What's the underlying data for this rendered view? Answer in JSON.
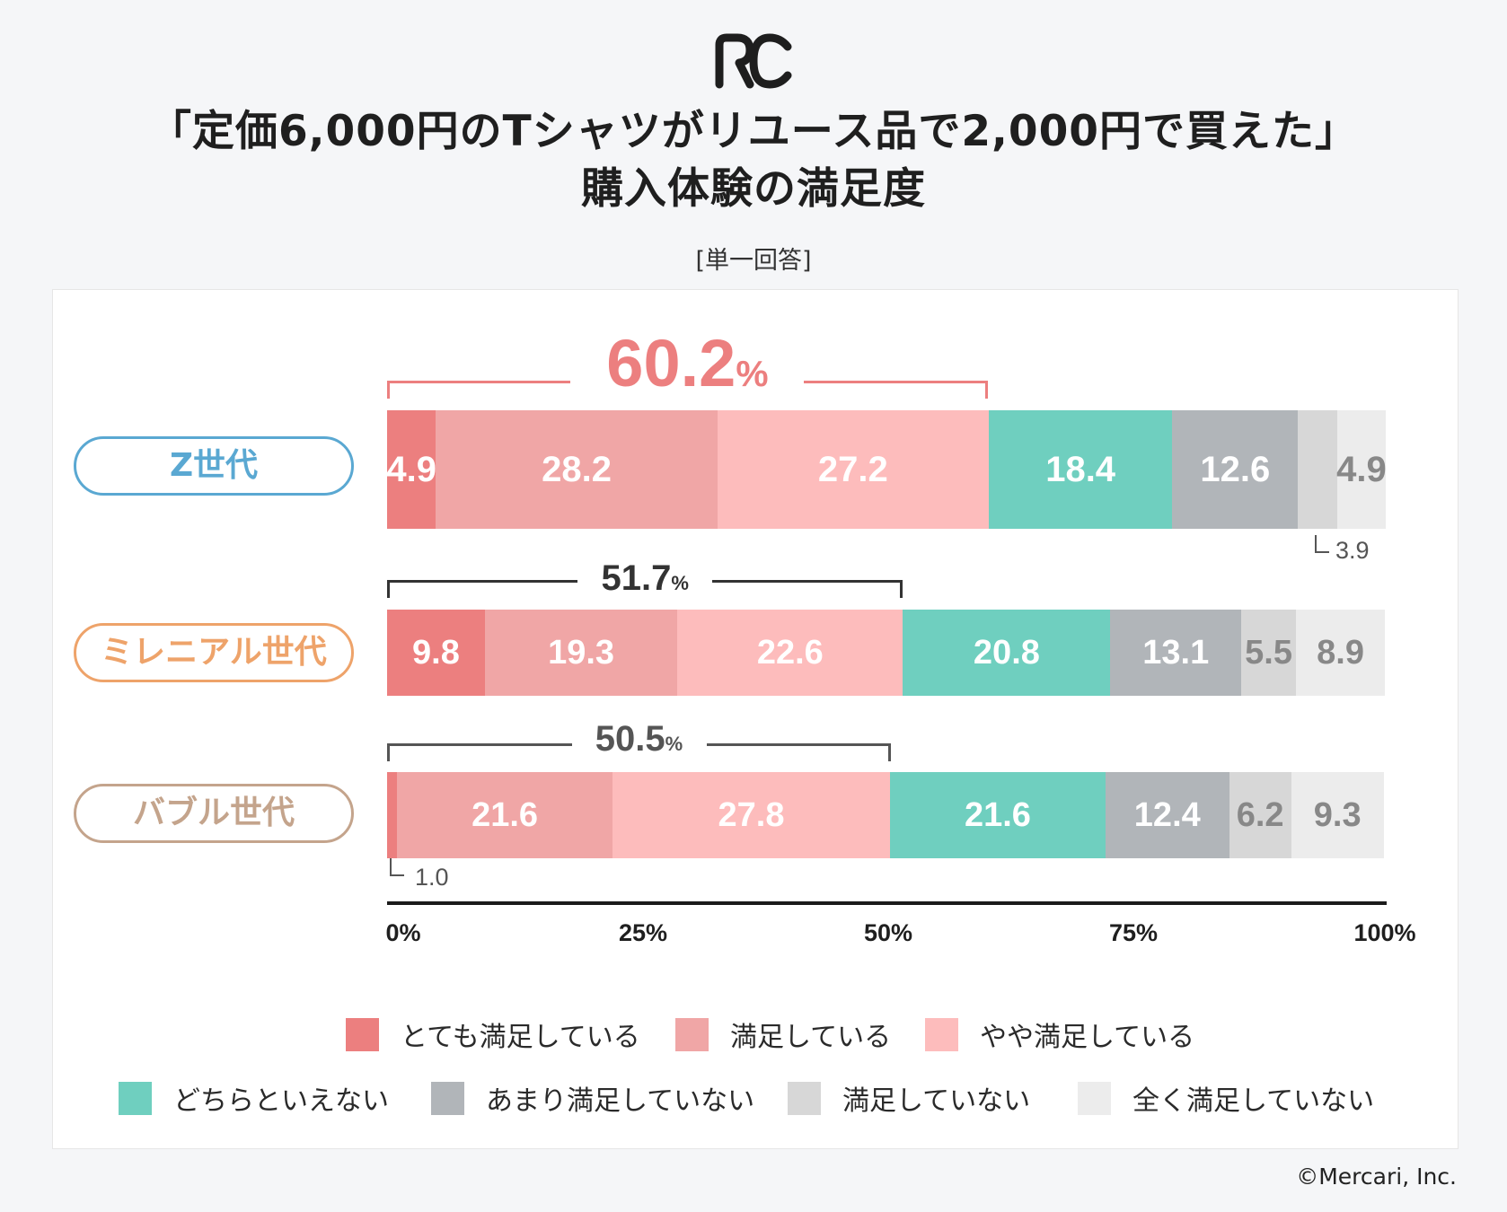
{
  "header": {
    "logo_text": "RC",
    "title_line1": "「定価6,000円のTシャツがリユース品で2,000円で買えた」",
    "title_line2": "購入体験の満足度",
    "subtitle": "[単一回答]"
  },
  "footer": {
    "copyright": "©Mercari, Inc."
  },
  "chart_data": {
    "type": "bar",
    "orientation": "horizontal",
    "stacked": true,
    "title": "「定価6,000円のTシャツがリユース品で2,000円で買えた」購入体験の満足度",
    "subtitle": "[単一回答]",
    "xlim": [
      0,
      100
    ],
    "x_ticks": [
      "0%",
      "25%",
      "50%",
      "75%",
      "100%"
    ],
    "categories": [
      "Z世代",
      "ミレニアル世代",
      "バブル世代"
    ],
    "category_colors": [
      "#5aa8d2",
      "#eea36a",
      "#c4a48c"
    ],
    "series": [
      {
        "name": "とても満足している",
        "color": "#ec7f7f",
        "text_color": "#ffffff",
        "values": [
          4.9,
          9.8,
          1.0
        ]
      },
      {
        "name": "満足している",
        "color": "#f0a6a6",
        "text_color": "#ffffff",
        "values": [
          28.2,
          19.3,
          21.6
        ]
      },
      {
        "name": "やや満足している",
        "color": "#fdbcbc",
        "text_color": "#ffffff",
        "values": [
          27.2,
          22.6,
          27.8
        ]
      },
      {
        "name": "どちらといえない",
        "color": "#6fcfbf",
        "text_color": "#ffffff",
        "values": [
          18.4,
          20.8,
          21.6
        ]
      },
      {
        "name": "あまり満足していない",
        "color": "#b1b5b9",
        "text_color": "#ffffff",
        "values": [
          12.6,
          13.1,
          12.4
        ]
      },
      {
        "name": "満足していない",
        "color": "#d7d7d7",
        "text_color": "#888888",
        "values": [
          3.9,
          5.5,
          6.2
        ]
      },
      {
        "name": "全く満足していない",
        "color": "#ececec",
        "text_color": "#888888",
        "values": [
          4.9,
          8.9,
          9.3
        ]
      }
    ],
    "segment_labels": [
      [
        "4.9",
        "28.2",
        "27.2",
        "18.4",
        "12.6",
        "",
        "4.9"
      ],
      [
        "9.8",
        "19.3",
        "22.6",
        "20.8",
        "13.1",
        "5.5",
        "8.9"
      ],
      [
        "",
        "21.6",
        "27.8",
        "21.6",
        "12.4",
        "6.2",
        "9.3"
      ]
    ],
    "callouts": [
      {
        "category": "Z世代",
        "label": "3.9"
      },
      {
        "category": "バブル世代",
        "label": "1.0"
      }
    ],
    "satisfied_totals": [
      {
        "category": "Z世代",
        "value": 60.2,
        "number": "60.2",
        "unit": "%",
        "color": "#ec7f7f"
      },
      {
        "category": "ミレニアル世代",
        "value": 51.7,
        "number": "51.7",
        "unit": "%",
        "color": "#333333"
      },
      {
        "category": "バブル世代",
        "value": 50.5,
        "number": "50.5",
        "unit": "%",
        "color": "#555555"
      }
    ]
  }
}
